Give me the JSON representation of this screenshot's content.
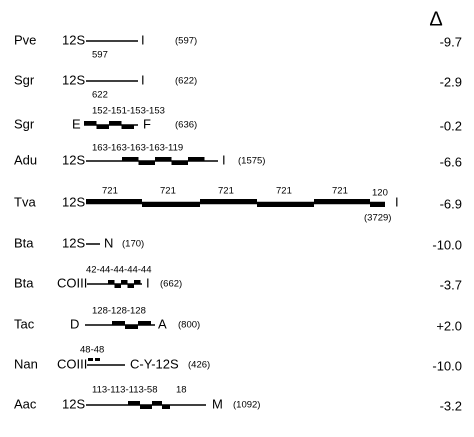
{
  "header": {
    "delta": "Δ"
  },
  "rows": [
    {
      "species": "Pve",
      "left": "12S",
      "right": "I",
      "labels": [
        "597"
      ],
      "length": "(597)",
      "delta": "-9.7"
    },
    {
      "species": "Sgr",
      "left": "12S",
      "right": "I",
      "labels": [
        "622"
      ],
      "length": "(622)",
      "delta": "-2.9"
    },
    {
      "species": "Sgr",
      "left": "E",
      "right": "F",
      "labels": [
        "152-151-153-153"
      ],
      "length": "(636)",
      "delta": "-0.2"
    },
    {
      "species": "Adu",
      "left": "12S",
      "right": "I",
      "labels": [
        "163-163-163-163-119"
      ],
      "length": "(1575)",
      "delta": "-6.6"
    },
    {
      "species": "Tva",
      "left": "12S",
      "right": "I",
      "labels": [
        "721",
        "721",
        "721",
        "721",
        "721",
        "120"
      ],
      "length": "(3729)",
      "delta": "-6.9"
    },
    {
      "species": "Bta",
      "left": "12S",
      "right": "N",
      "labels": [],
      "length": "(170)",
      "delta": "-10.0"
    },
    {
      "species": "Bta",
      "left": "COIII",
      "right": "I",
      "labels": [
        "42-44-44-44-44"
      ],
      "length": "(662)",
      "delta": "-3.7"
    },
    {
      "species": "Tac",
      "left": "D",
      "right": "A",
      "labels": [
        "128-128-128"
      ],
      "length": "(800)",
      "delta": "+2.0"
    },
    {
      "species": "Nan",
      "left": "COIII",
      "right": "C-Y-12S",
      "labels": [
        "48-48"
      ],
      "length": "(426)",
      "delta": "-10.0"
    },
    {
      "species": "Aac",
      "left": "12S",
      "right": "M",
      "labels": [
        "113-113-113-58",
        "18"
      ],
      "length": "(1092)",
      "delta": "-3.2"
    }
  ]
}
